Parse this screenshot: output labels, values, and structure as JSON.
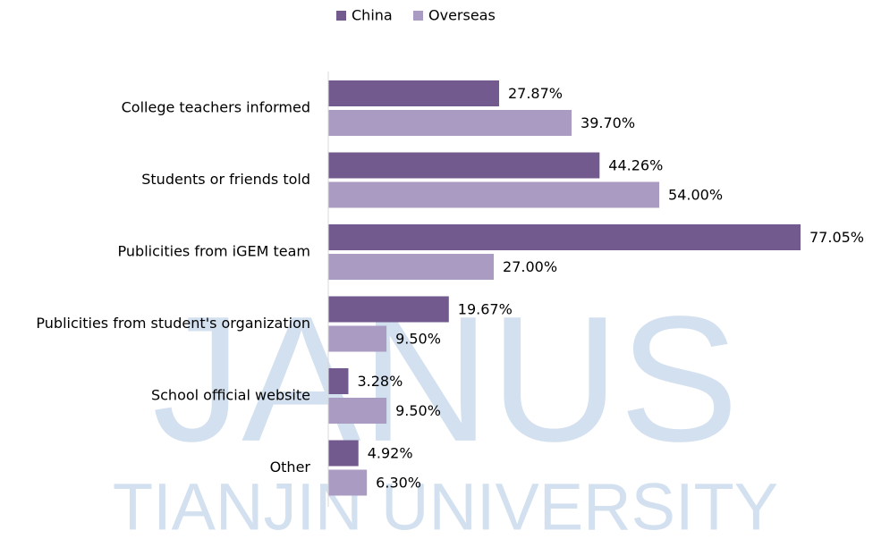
{
  "chart_data": {
    "type": "bar",
    "orientation": "horizontal",
    "categories": [
      "College teachers informed",
      "Students or friends told",
      "Publicities from iGEM team",
      "Publicities from student's organization",
      "School official website",
      "Other"
    ],
    "series": [
      {
        "name": "China",
        "color": "#725a8f",
        "values": [
          27.87,
          44.26,
          77.05,
          19.67,
          3.28,
          4.92
        ],
        "value_labels": [
          "27.87%",
          "44.26%",
          "77.05%",
          "19.67%",
          "3.28%",
          "4.92%"
        ]
      },
      {
        "name": "Overseas",
        "color": "#a99bc2",
        "values": [
          39.7,
          54.0,
          27.0,
          9.5,
          9.5,
          6.3
        ],
        "value_labels": [
          "39.70%",
          "54.00%",
          "27.00%",
          "9.50%",
          "9.50%",
          "6.30%"
        ]
      }
    ],
    "legend": "top",
    "watermark": [
      "JANUS",
      "TIANJIN UNIVERSITY"
    ]
  }
}
